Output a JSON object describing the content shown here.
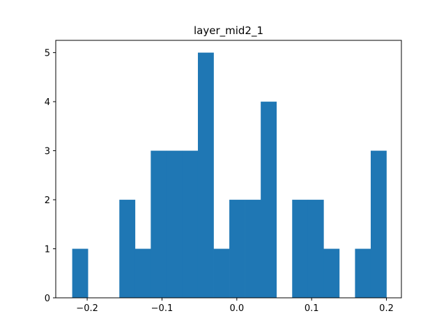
{
  "chart_data": {
    "type": "histogram",
    "title": "layer_mid2_1",
    "xlabel": "",
    "ylabel": "",
    "xlim": [
      -0.242,
      0.22
    ],
    "ylim": [
      0,
      5.25
    ],
    "bin_start": -0.22,
    "bin_width": 0.021,
    "counts": [
      1,
      0,
      0,
      2,
      1,
      3,
      3,
      3,
      5,
      1,
      2,
      2,
      4,
      0,
      2,
      2,
      1,
      0,
      1,
      3
    ],
    "xticks": [
      -0.2,
      -0.1,
      0.0,
      0.1,
      0.2
    ],
    "xtick_labels": [
      "−0.2",
      "−0.1",
      "0.0",
      "0.1",
      "0.2"
    ],
    "yticks": [
      0,
      1,
      2,
      3,
      4,
      5
    ],
    "ytick_labels": [
      "0",
      "1",
      "2",
      "3",
      "4",
      "5"
    ],
    "bar_color": "#1f77b4",
    "grid": false
  }
}
